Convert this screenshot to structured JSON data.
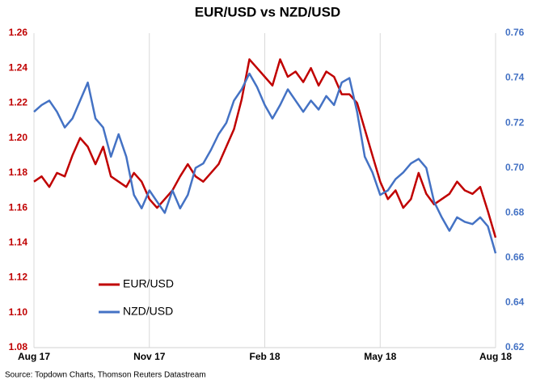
{
  "chart_data": {
    "type": "line",
    "title": "EUR/USD vs NZD/USD",
    "source": "Source: Topdown Charts, Thomson Reuters Datastream",
    "x": [
      0,
      0.2,
      0.4,
      0.6,
      0.8,
      1,
      1.2,
      1.4,
      1.6,
      1.8,
      2,
      2.2,
      2.4,
      2.6,
      2.8,
      3,
      3.2,
      3.4,
      3.6,
      3.8,
      4,
      4.2,
      4.4,
      4.6,
      4.8,
      5,
      5.2,
      5.4,
      5.6,
      5.8,
      6,
      6.2,
      6.4,
      6.6,
      6.8,
      7,
      7.2,
      7.4,
      7.6,
      7.8,
      8,
      8.2,
      8.4,
      8.6,
      8.8,
      9,
      9.2,
      9.4,
      9.6,
      9.8,
      10,
      10.2,
      10.4,
      10.6,
      10.8,
      11,
      11.2,
      11.4,
      11.6,
      11.8,
      12
    ],
    "xlim": [
      0,
      12
    ],
    "xticks": [
      {
        "value": 0,
        "label": "Aug 17"
      },
      {
        "value": 3,
        "label": "Nov 17"
      },
      {
        "value": 6,
        "label": "Feb 18"
      },
      {
        "value": 9,
        "label": "May 18"
      },
      {
        "value": 12,
        "label": "Aug 18"
      }
    ],
    "ylim": [
      1.08,
      1.26
    ],
    "yticks": [
      1.08,
      {
        "value": 1.1,
        "label": "1.10"
      },
      1.12,
      1.14,
      1.16,
      1.18,
      {
        "value": 1.2,
        "label": "1.20"
      },
      1.22,
      1.24,
      1.26
    ],
    "y2lim": [
      0.62,
      0.76
    ],
    "y2ticks": [
      0.62,
      0.64,
      0.66,
      0.68,
      {
        "value": 0.7,
        "label": "0.70"
      },
      0.72,
      0.74,
      0.76
    ],
    "grid": "x",
    "legend": "lower left",
    "series": [
      {
        "name": "EUR/USD",
        "color": "#c00000",
        "values": [
          1.175,
          1.178,
          1.172,
          1.18,
          1.178,
          1.19,
          1.2,
          1.195,
          1.185,
          1.195,
          1.178,
          1.175,
          1.172,
          1.18,
          1.175,
          1.165,
          1.16,
          1.165,
          1.17,
          1.178,
          1.185,
          1.178,
          1.175,
          1.18,
          1.185,
          1.195,
          1.205,
          1.222,
          1.245,
          1.24,
          1.235,
          1.23,
          1.245,
          1.235,
          1.238,
          1.232,
          1.24,
          1.23,
          1.238,
          1.235,
          1.225,
          1.225,
          1.22,
          1.205,
          1.19,
          1.175,
          1.165,
          1.17,
          1.16,
          1.165,
          1.18,
          1.168,
          1.162,
          1.165,
          1.168,
          1.175,
          1.17,
          1.168,
          1.172,
          1.158,
          1.143
        ]
      },
      {
        "name": "NZD/USD",
        "color": "#4472c4",
        "axis": "y2",
        "values": [
          0.725,
          0.728,
          0.73,
          0.725,
          0.718,
          0.722,
          0.73,
          0.738,
          0.722,
          0.718,
          0.705,
          0.715,
          0.705,
          0.688,
          0.682,
          0.69,
          0.685,
          0.68,
          0.69,
          0.682,
          0.688,
          0.7,
          0.702,
          0.708,
          0.715,
          0.72,
          0.73,
          0.735,
          0.742,
          0.736,
          0.728,
          0.722,
          0.728,
          0.735,
          0.73,
          0.725,
          0.73,
          0.726,
          0.732,
          0.728,
          0.738,
          0.74,
          0.725,
          0.705,
          0.698,
          0.688,
          0.69,
          0.695,
          0.698,
          0.702,
          0.704,
          0.7,
          0.685,
          0.678,
          0.672,
          0.678,
          0.676,
          0.675,
          0.678,
          0.674,
          0.662
        ]
      }
    ]
  }
}
